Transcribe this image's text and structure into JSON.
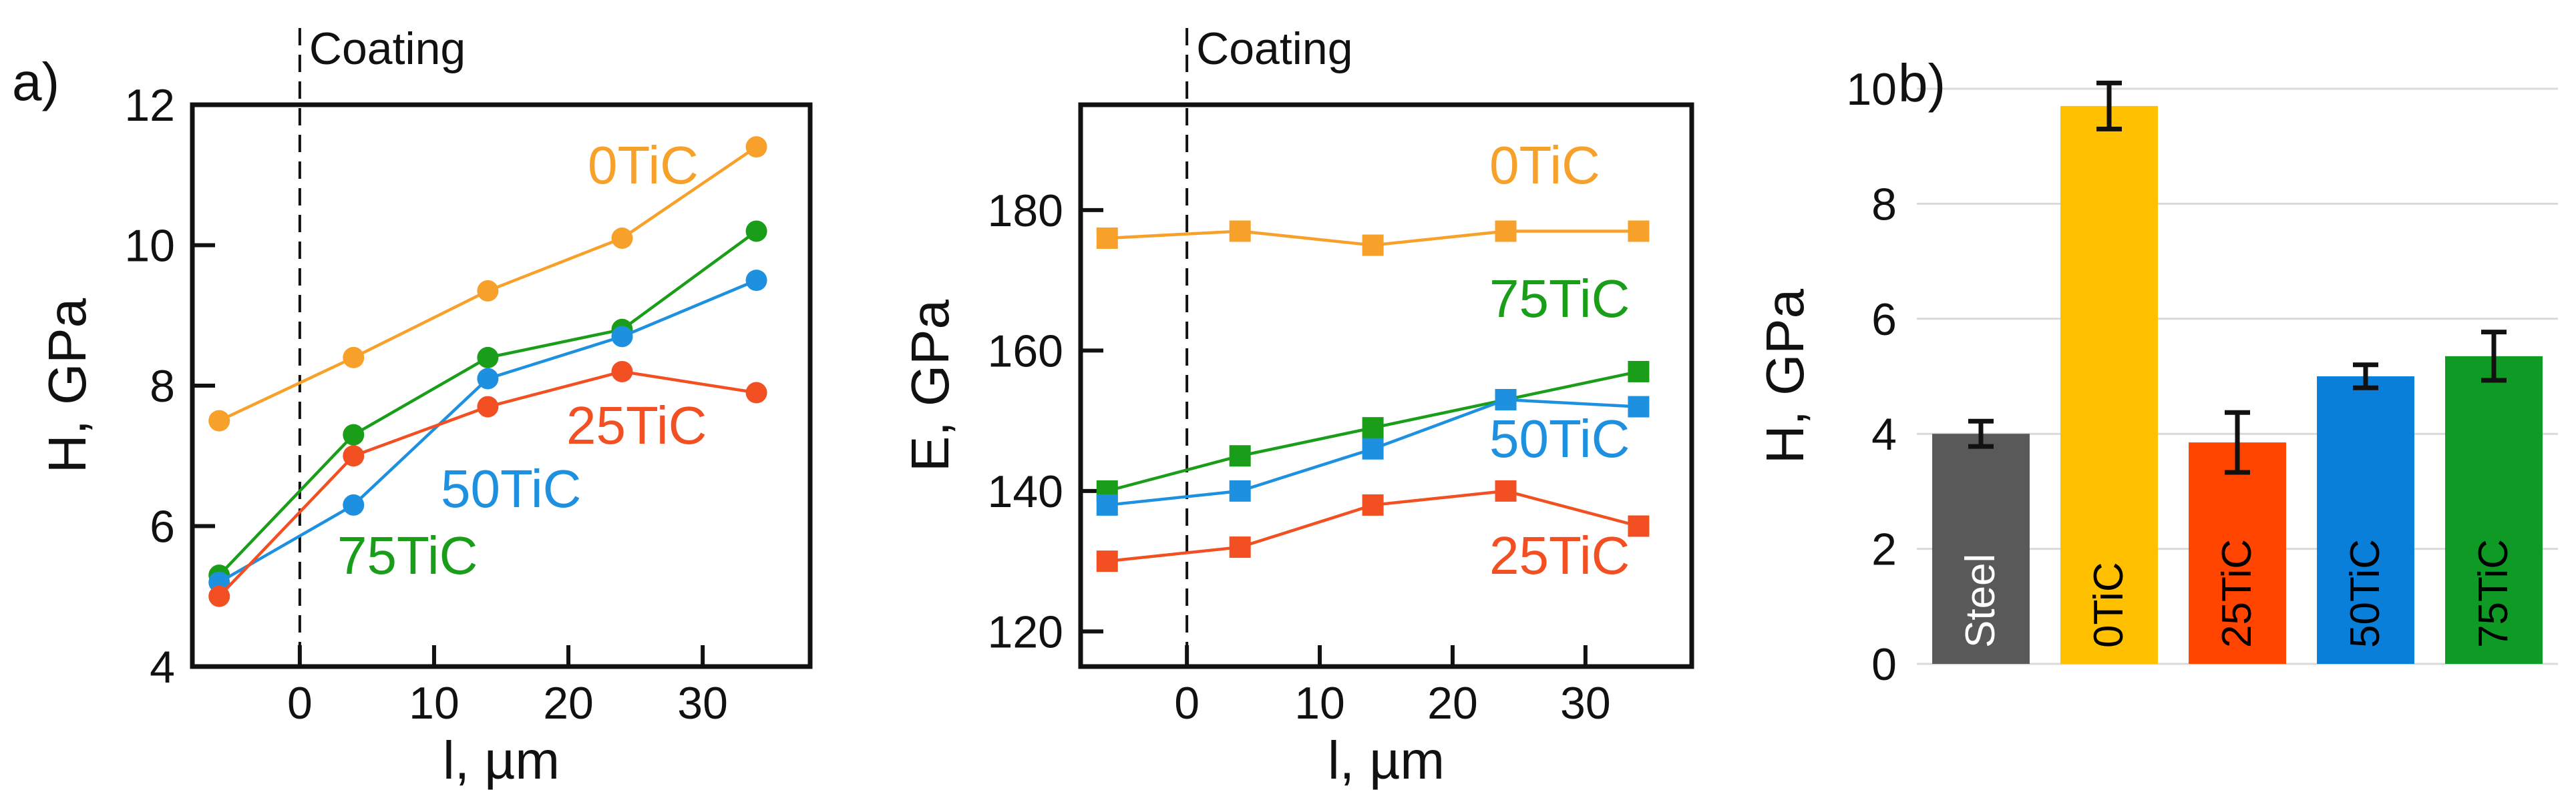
{
  "chart_data": [
    {
      "panel_label": "a)",
      "type": "line",
      "xlabel": "l, µm",
      "ylabel": "H, GPa",
      "xlim": [
        -8,
        38
      ],
      "ylim": [
        4,
        12
      ],
      "xticks": [
        0,
        10,
        20,
        30
      ],
      "yticks": [
        4,
        6,
        8,
        10,
        12
      ],
      "marker": "circle",
      "divider": {
        "x": 0,
        "label": "Coating"
      },
      "x": [
        -6,
        4,
        14,
        24,
        34
      ],
      "series": [
        {
          "name": "0TiC",
          "label": "0TiC",
          "color": "#F7A12A",
          "values": [
            7.5,
            8.4,
            9.35,
            10.1,
            11.4
          ]
        },
        {
          "name": "75TiC",
          "label": "75TiC",
          "color": "#1A9E1A",
          "values": [
            5.3,
            7.3,
            8.4,
            8.8,
            10.2
          ]
        },
        {
          "name": "50TiC",
          "label": "50TiC",
          "color": "#1E90E0",
          "values": [
            5.2,
            6.3,
            8.1,
            8.7,
            9.5
          ]
        },
        {
          "name": "25TiC",
          "label": "25TiC",
          "color": "#F25022",
          "values": [
            5.0,
            7.0,
            7.7,
            8.2,
            7.9
          ]
        }
      ]
    },
    {
      "type": "line",
      "xlabel": "l, µm",
      "ylabel": "E, GPa",
      "xlim": [
        -8,
        38
      ],
      "ylim": [
        115,
        195
      ],
      "xticks": [
        0,
        10,
        20,
        30
      ],
      "yticks": [
        120,
        140,
        160,
        180
      ],
      "marker": "square",
      "divider": {
        "x": 0,
        "label": "Coating"
      },
      "x": [
        -6,
        4,
        14,
        24,
        34
      ],
      "series": [
        {
          "name": "0TiC",
          "label": "0TiC",
          "color": "#F7A12A",
          "values": [
            176,
            177,
            175,
            177,
            177
          ]
        },
        {
          "name": "75TiC",
          "label": "75TiC",
          "color": "#1A9E1A",
          "values": [
            140,
            145,
            149,
            153,
            157
          ]
        },
        {
          "name": "50TiC",
          "label": "50TiC",
          "color": "#1E90E0",
          "values": [
            138,
            140,
            146,
            153,
            152
          ]
        },
        {
          "name": "25TiC",
          "label": "25TiC",
          "color": "#F25022",
          "values": [
            130,
            132,
            138,
            140,
            135
          ]
        }
      ]
    },
    {
      "panel_label": "b)",
      "type": "bar",
      "ylabel": "H, GPa",
      "ylim": [
        0,
        10
      ],
      "yticks": [
        0,
        2,
        4,
        6,
        8,
        10
      ],
      "grid": true,
      "categories": [
        "Steel",
        "0TiC",
        "25TiC",
        "50TiC",
        "75TiC"
      ],
      "values": [
        4.0,
        9.7,
        3.85,
        5.0,
        5.35
      ],
      "errors": [
        0.22,
        0.4,
        0.52,
        0.2,
        0.42
      ],
      "colors": [
        "#595959",
        "#FFC000",
        "#FF4500",
        "#0A7FD9",
        "#0E9A24"
      ],
      "label_colors": [
        "#ffffff",
        "#000000",
        "#000000",
        "#000000",
        "#000000"
      ]
    }
  ]
}
